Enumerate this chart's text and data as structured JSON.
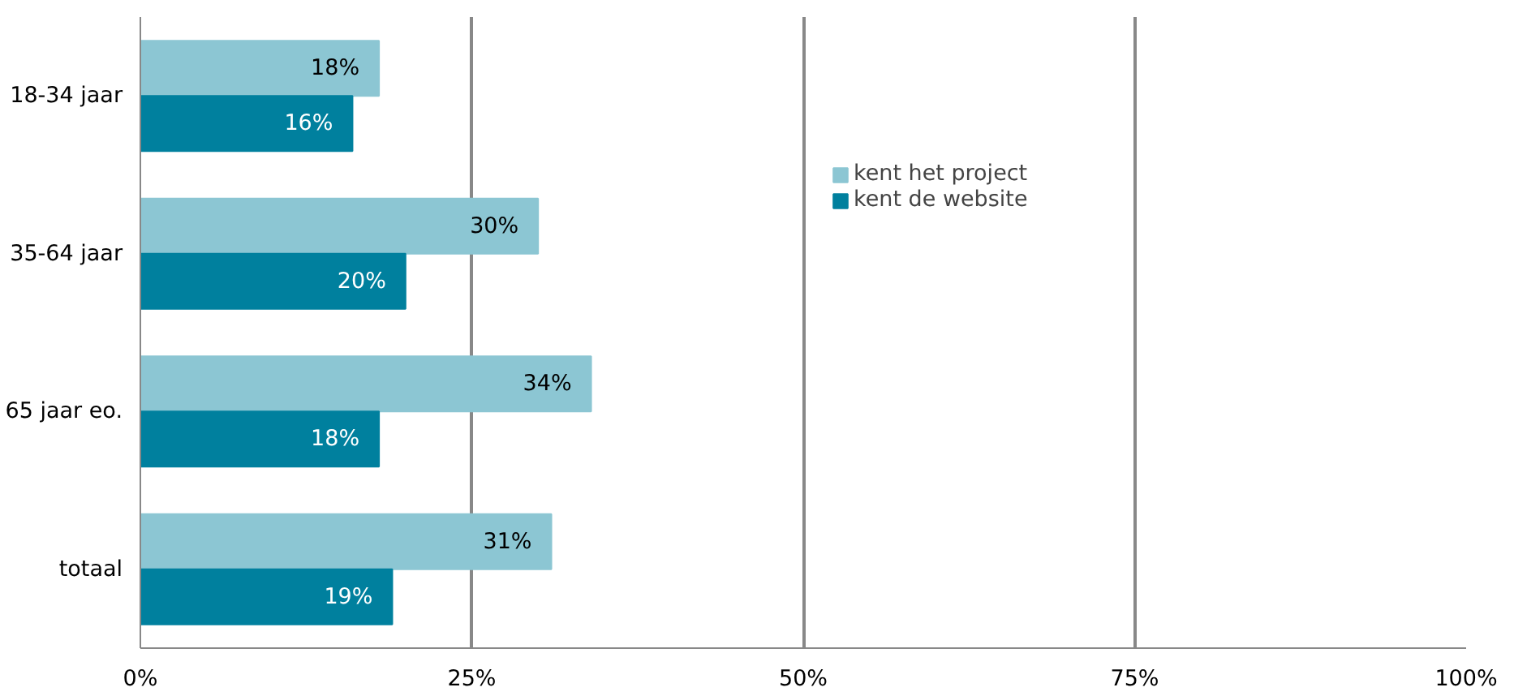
{
  "chart_data": {
    "type": "bar",
    "orientation": "horizontal",
    "categories": [
      "18-34 jaar",
      "35-64 jaar",
      "65 jaar eo.",
      "totaal"
    ],
    "series": [
      {
        "name": "kent het project",
        "color": "#8cc6d3",
        "values": [
          18,
          30,
          34,
          31
        ],
        "value_labels": [
          "18%",
          "30%",
          "34%",
          "31%"
        ]
      },
      {
        "name": "kent de website",
        "color": "#00809e",
        "values": [
          16,
          20,
          18,
          19
        ],
        "value_labels": [
          "16%",
          "20%",
          "18%",
          "19%"
        ]
      }
    ],
    "xlim": [
      0,
      100
    ],
    "xticks": [
      {
        "value": 0,
        "label": "0%"
      },
      {
        "value": 25,
        "label": "25%"
      },
      {
        "value": 50,
        "label": "50%"
      },
      {
        "value": 75,
        "label": "75%"
      },
      {
        "value": 100,
        "label": "100%"
      }
    ],
    "grid": "x",
    "legend": "top"
  }
}
